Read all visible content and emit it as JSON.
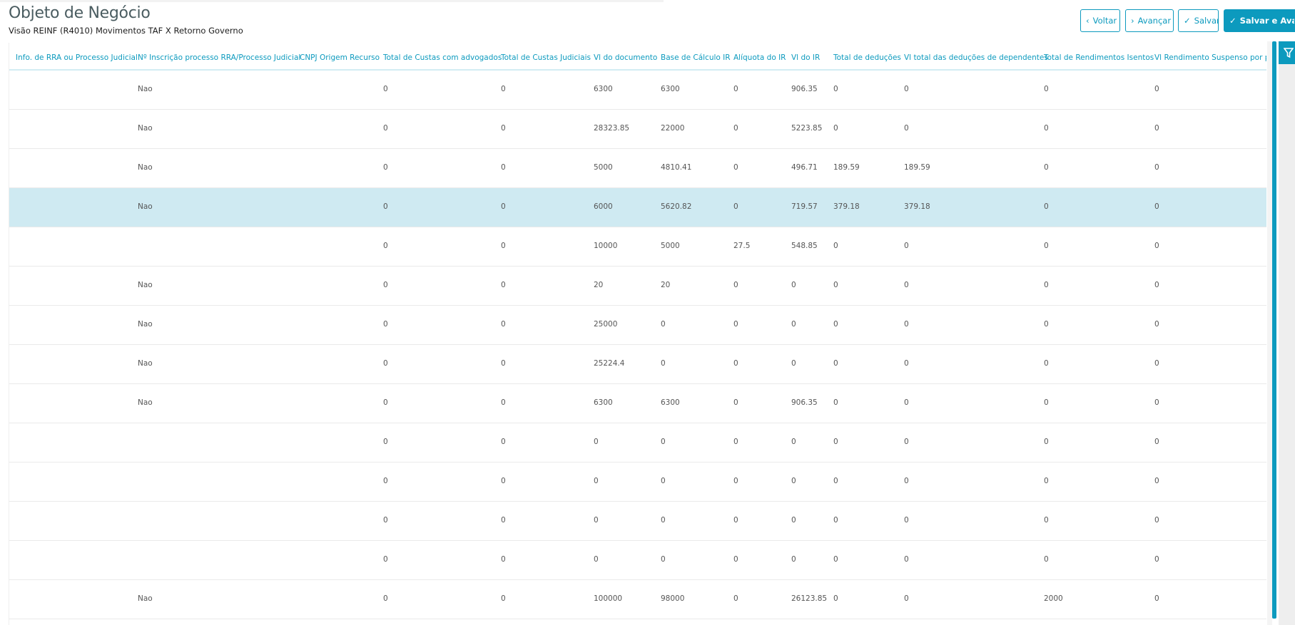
{
  "header": {
    "title": "Objeto de Negócio",
    "subtitle": "Visão REINF (R4010) Movimentos TAF X Retorno Governo"
  },
  "toolbar": {
    "back": "Voltar",
    "forward": "Avançar",
    "save": "Salvar",
    "save_forward": "Salvar e Avançar"
  },
  "colors": {
    "accent": "#0c9abe",
    "selected_row": "#cfeaf2"
  },
  "table": {
    "columns": [
      "Info. de RRA ou Processo Judicial",
      "Nº Inscrição processo RRA/Processo Judicial",
      "CNPJ Origem Recurso",
      "Total de Custas com advogados",
      "Total de Custas Judiciais",
      "Vl do documento",
      "Base de Cálculo IR",
      "Alíquota do IR",
      "Vl do IR",
      "Total de deduções",
      "Vl total das deduções de dependentes",
      "Total de Rendimentos Isentos",
      "Vl Rendimento Suspenso por pro"
    ],
    "selected_row": 3,
    "rows": [
      [
        "",
        "Nao",
        "",
        "0",
        "0",
        "6300",
        "6300",
        "0",
        "906.35",
        "0",
        "0",
        "0",
        "0"
      ],
      [
        "",
        "Nao",
        "",
        "0",
        "0",
        "28323.85",
        "22000",
        "0",
        "5223.85",
        "0",
        "0",
        "0",
        "0"
      ],
      [
        "",
        "Nao",
        "",
        "0",
        "0",
        "5000",
        "4810.41",
        "0",
        "496.71",
        "189.59",
        "189.59",
        "0",
        "0"
      ],
      [
        "",
        "Nao",
        "",
        "0",
        "0",
        "6000",
        "5620.82",
        "0",
        "719.57",
        "379.18",
        "379.18",
        "0",
        "0"
      ],
      [
        "",
        "",
        "",
        "0",
        "0",
        "10000",
        "5000",
        "27.5",
        "548.85",
        "0",
        "0",
        "0",
        "0"
      ],
      [
        "",
        "Nao",
        "",
        "0",
        "0",
        "20",
        "20",
        "0",
        "0",
        "0",
        "0",
        "0",
        "0"
      ],
      [
        "",
        "Nao",
        "",
        "0",
        "0",
        "25000",
        "0",
        "0",
        "0",
        "0",
        "0",
        "0",
        "0"
      ],
      [
        "",
        "Nao",
        "",
        "0",
        "0",
        "25224.4",
        "0",
        "0",
        "0",
        "0",
        "0",
        "0",
        "0"
      ],
      [
        "",
        "Nao",
        "",
        "0",
        "0",
        "6300",
        "6300",
        "0",
        "906.35",
        "0",
        "0",
        "0",
        "0"
      ],
      [
        "",
        "",
        "",
        "0",
        "0",
        "0",
        "0",
        "0",
        "0",
        "0",
        "0",
        "0",
        "0"
      ],
      [
        "",
        "",
        "",
        "0",
        "0",
        "0",
        "0",
        "0",
        "0",
        "0",
        "0",
        "0",
        "0"
      ],
      [
        "",
        "",
        "",
        "0",
        "0",
        "0",
        "0",
        "0",
        "0",
        "0",
        "0",
        "0",
        "0"
      ],
      [
        "",
        "",
        "",
        "0",
        "0",
        "0",
        "0",
        "0",
        "0",
        "0",
        "0",
        "0",
        "0"
      ],
      [
        "",
        "Nao",
        "",
        "0",
        "0",
        "100000",
        "98000",
        "0",
        "26123.85",
        "0",
        "0",
        "2000",
        "0"
      ]
    ]
  }
}
